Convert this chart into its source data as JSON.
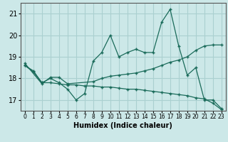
{
  "xlabel": "Humidex (Indice chaleur)",
  "bg_color": "#cce8e8",
  "grid_color": "#aad0d0",
  "line_color": "#1a6b5a",
  "xlim": [
    -0.5,
    23.5
  ],
  "ylim": [
    16.5,
    21.5
  ],
  "yticks": [
    17,
    18,
    19,
    20,
    21
  ],
  "xticks": [
    0,
    1,
    2,
    3,
    4,
    5,
    6,
    7,
    8,
    9,
    10,
    11,
    12,
    13,
    14,
    15,
    16,
    17,
    18,
    19,
    20,
    21,
    22,
    23
  ],
  "line1_x": [
    0,
    1,
    2,
    3,
    4,
    5,
    6,
    7,
    8,
    9,
    10,
    11,
    12,
    13,
    14,
    15,
    16,
    17,
    18,
    19,
    20,
    21,
    22,
    23
  ],
  "line1_y": [
    18.6,
    18.3,
    17.8,
    18.0,
    17.8,
    17.5,
    17.0,
    17.3,
    18.8,
    19.2,
    20.0,
    19.0,
    19.2,
    19.35,
    19.2,
    19.2,
    20.6,
    21.2,
    19.5,
    18.15,
    18.5,
    17.0,
    17.0,
    16.6
  ],
  "line2_x": [
    0,
    2,
    3,
    4,
    5,
    8,
    9,
    10,
    11,
    12,
    13,
    14,
    15,
    16,
    17,
    18,
    19,
    20,
    21,
    22,
    23
  ],
  "line2_y": [
    18.7,
    17.75,
    18.05,
    18.05,
    17.75,
    17.85,
    18.0,
    18.1,
    18.15,
    18.2,
    18.25,
    18.35,
    18.45,
    18.6,
    18.75,
    18.85,
    19.0,
    19.3,
    19.5,
    19.55,
    19.55
  ],
  "line3_x": [
    0,
    1,
    2,
    3,
    4,
    5,
    6,
    7,
    8,
    9,
    10,
    11,
    12,
    13,
    14,
    15,
    16,
    17,
    18,
    19,
    20,
    21,
    22,
    23
  ],
  "line3_y": [
    18.6,
    18.35,
    17.8,
    17.8,
    17.75,
    17.7,
    17.7,
    17.65,
    17.65,
    17.6,
    17.6,
    17.55,
    17.5,
    17.5,
    17.45,
    17.4,
    17.35,
    17.3,
    17.25,
    17.2,
    17.1,
    17.05,
    16.85,
    16.55
  ]
}
